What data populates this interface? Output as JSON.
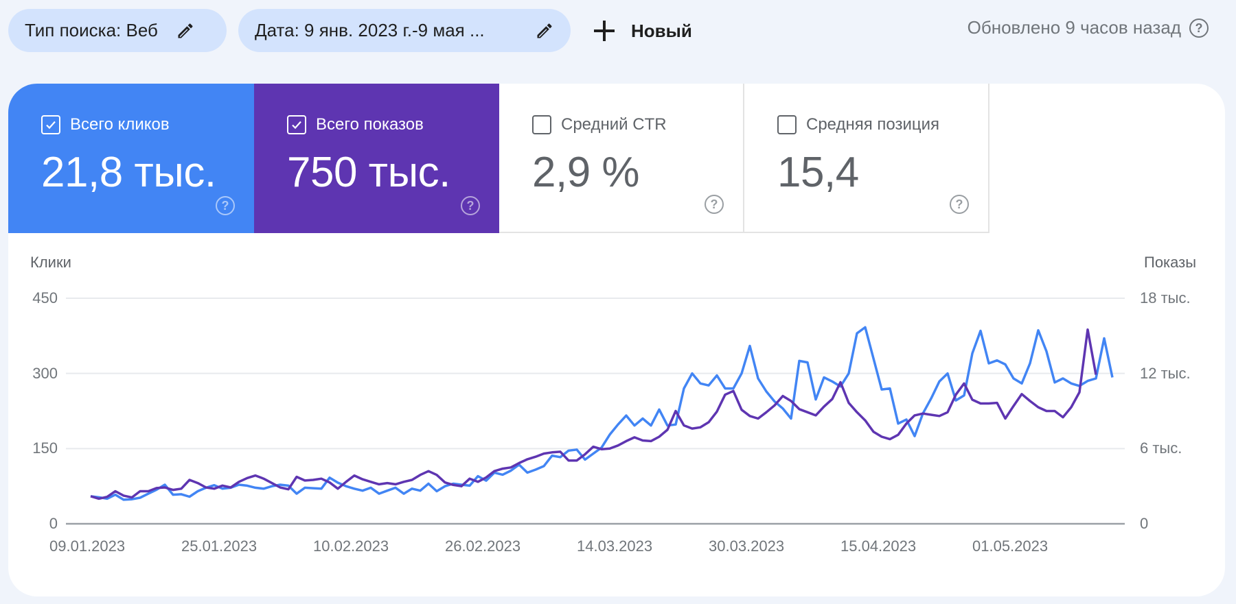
{
  "toolbar": {
    "search_type_chip": "Тип поиска: Веб",
    "date_chip": "Дата: 9 янв. 2023 г.-9 мая ...",
    "new_button": "Новый",
    "updated_text": "Обновлено 9 часов назад",
    "help_glyph": "?"
  },
  "metrics": [
    {
      "label": "Всего кликов",
      "value": "21,8 тыс.",
      "checked": true,
      "color": "#4285f4"
    },
    {
      "label": "Всего показов",
      "value": "750 тыс.",
      "checked": true,
      "color": "#5e35b1"
    },
    {
      "label": "Средний CTR",
      "value": "2,9 %",
      "checked": false
    },
    {
      "label": "Средняя позиция",
      "value": "15,4",
      "checked": false
    }
  ],
  "colors": {
    "background": "#f0f4fb",
    "chip": "#d3e3fd",
    "clicks": "#4285f4",
    "impressions": "#5e35b1",
    "grid": "#e8eaed",
    "axis": "#9aa0a6"
  },
  "chart_data": {
    "type": "line",
    "title": "",
    "ylabel": "Клики",
    "ylabel_right": "Показы",
    "ylim": [
      0,
      450
    ],
    "ylim_right": [
      0,
      18000
    ],
    "yticks": [
      "0",
      "150",
      "300",
      "450"
    ],
    "yticks_right": [
      "0",
      "6 тыс.",
      "12 тыс.",
      "18 тыс."
    ],
    "xticks": [
      "09.01.2023",
      "25.01.2023",
      "10.02.2023",
      "26.02.2023",
      "14.03.2023",
      "30.03.2023",
      "15.04.2023",
      "01.05.2023"
    ],
    "x_start": "09.01.2023",
    "x_end": "09.05.2023",
    "grid": true,
    "legend": "none (metric tiles act as legend)",
    "series": [
      {
        "name": "Клики",
        "axis": "left",
        "color": "#4285f4",
        "values": [
          55,
          53,
          50,
          58,
          48,
          49,
          52,
          60,
          68,
          78,
          58,
          59,
          54,
          65,
          72,
          77,
          70,
          72,
          78,
          76,
          72,
          70,
          75,
          78,
          76,
          60,
          72,
          71,
          70,
          92,
          82,
          75,
          70,
          66,
          72,
          60,
          66,
          72,
          60,
          70,
          66,
          80,
          65,
          75,
          80,
          78,
          76,
          95,
          86,
          102,
          98,
          106,
          118,
          102,
          108,
          115,
          136,
          133,
          146,
          148,
          128,
          140,
          152,
          178,
          198,
          216,
          196,
          210,
          196,
          228,
          196,
          198,
          270,
          300,
          280,
          276,
          296,
          270,
          270,
          300,
          355,
          290,
          264,
          244,
          230,
          210,
          325,
          322,
          248,
          292,
          284,
          274,
          300,
          380,
          392,
          330,
          268,
          270,
          200,
          208,
          175,
          220,
          250,
          284,
          300,
          246,
          256,
          340,
          385,
          320,
          326,
          318,
          290,
          280,
          320,
          386,
          344,
          282,
          290,
          280,
          275,
          285,
          290,
          370,
          292
        ]
      },
      {
        "name": "Показы",
        "axis": "right",
        "color": "#5e35b1",
        "values": [
          2200,
          2000,
          2150,
          2600,
          2250,
          2100,
          2600,
          2600,
          2850,
          2900,
          2700,
          2800,
          3500,
          3250,
          2900,
          2800,
          3050,
          2900,
          3350,
          3650,
          3850,
          3600,
          3250,
          2900,
          2750,
          3750,
          3450,
          3500,
          3600,
          3300,
          2800,
          3350,
          3850,
          3550,
          3350,
          3150,
          3250,
          3150,
          3350,
          3500,
          3900,
          4200,
          3900,
          3300,
          3100,
          3000,
          3600,
          3350,
          3700,
          4200,
          4400,
          4500,
          4850,
          5150,
          5350,
          5600,
          5700,
          5750,
          5050,
          5050,
          5550,
          6150,
          5950,
          6000,
          6250,
          6600,
          6900,
          6650,
          6600,
          6950,
          7500,
          9000,
          7850,
          7600,
          7700,
          8100,
          8950,
          10300,
          10600,
          9100,
          8600,
          8400,
          8900,
          9450,
          10200,
          9800,
          9150,
          8900,
          8650,
          9350,
          9950,
          11300,
          9650,
          8900,
          8250,
          7350,
          6950,
          6750,
          7100,
          8000,
          8650,
          8800,
          8700,
          8600,
          8900,
          10300,
          11200,
          9900,
          9600,
          9600,
          9650,
          8400,
          9400,
          10350,
          9800,
          9300,
          9000,
          9000,
          8500,
          9300,
          10500,
          15500,
          11900
        ]
      }
    ]
  }
}
